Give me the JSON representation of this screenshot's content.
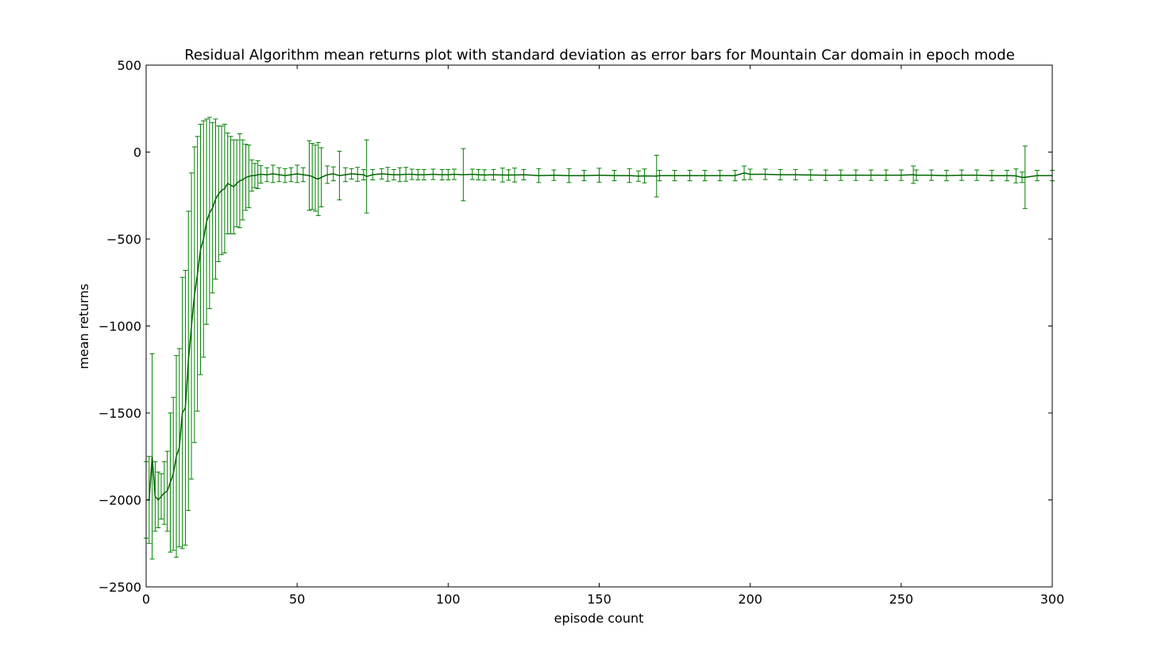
{
  "chart_data": {
    "type": "line",
    "title": "Residual Algorithm mean returns plot with standard deviation as error bars for Mountain Car domain in epoch mode",
    "xlabel": "episode count",
    "ylabel": "mean returns",
    "xlim": [
      0,
      300
    ],
    "ylim": [
      -2500,
      500
    ],
    "xticks": [
      "0",
      "50",
      "100",
      "150",
      "200",
      "250",
      "300"
    ],
    "yticks": [
      "500",
      "0",
      "−500",
      "−1000",
      "−1500",
      "−2000",
      "−2500"
    ],
    "grid": false,
    "legend": "none",
    "line_color": "#006400",
    "errorbar_color": "#008000",
    "series": [
      {
        "x": [
          0,
          1,
          2,
          3,
          4,
          5,
          6,
          7,
          8,
          9,
          10,
          11,
          12,
          13,
          14,
          15,
          16,
          17,
          18,
          19,
          20,
          21,
          22,
          23,
          24,
          25,
          26,
          27,
          28,
          29,
          30,
          31,
          32,
          33,
          34,
          35,
          36,
          37,
          38,
          40,
          42,
          44,
          46,
          48,
          50,
          52,
          54,
          55,
          56,
          57,
          58,
          60,
          62,
          64,
          66,
          68,
          70,
          72,
          73,
          75,
          78,
          80,
          82,
          84,
          86,
          88,
          90,
          92,
          95,
          98,
          100,
          102,
          105,
          108,
          110,
          112,
          115,
          118,
          120,
          122,
          125,
          130,
          135,
          140,
          145,
          150,
          155,
          160,
          163,
          165,
          169,
          170,
          175,
          180,
          185,
          190,
          195,
          198,
          200,
          205,
          210,
          215,
          220,
          225,
          230,
          235,
          240,
          245,
          250,
          254,
          255,
          260,
          265,
          270,
          275,
          280,
          285,
          288,
          290,
          291,
          295,
          300
        ],
        "mean": [
          -2000,
          -2000,
          -1750,
          -1980,
          -2000,
          -1980,
          -1960,
          -1950,
          -1900,
          -1850,
          -1750,
          -1700,
          -1500,
          -1470,
          -1200,
          -1000,
          -820,
          -700,
          -560,
          -500,
          -400,
          -350,
          -320,
          -270,
          -240,
          -220,
          -210,
          -180,
          -190,
          -200,
          -180,
          -165,
          -160,
          -145,
          -140,
          -135,
          -135,
          -130,
          -128,
          -130,
          -125,
          -130,
          -135,
          -130,
          -125,
          -130,
          -135,
          -140,
          -150,
          -155,
          -145,
          -130,
          -125,
          -135,
          -130,
          -125,
          -128,
          -130,
          -140,
          -130,
          -125,
          -128,
          -130,
          -130,
          -128,
          -128,
          -130,
          -130,
          -128,
          -130,
          -130,
          -128,
          -130,
          -128,
          -130,
          -132,
          -130,
          -132,
          -132,
          -132,
          -130,
          -135,
          -133,
          -135,
          -135,
          -133,
          -135,
          -135,
          -138,
          -137,
          -138,
          -135,
          -135,
          -135,
          -135,
          -135,
          -135,
          -120,
          -128,
          -128,
          -130,
          -130,
          -132,
          -133,
          -133,
          -133,
          -133,
          -133,
          -133,
          -130,
          -133,
          -133,
          -135,
          -133,
          -133,
          -135,
          -135,
          -137,
          -145,
          -145,
          -135,
          -135
        ],
        "std": [
          220,
          250,
          590,
          200,
          160,
          130,
          180,
          230,
          400,
          440,
          580,
          570,
          780,
          790,
          860,
          880,
          850,
          790,
          720,
          680,
          590,
          550,
          490,
          460,
          390,
          370,
          370,
          290,
          280,
          270,
          250,
          270,
          230,
          190,
          180,
          90,
          70,
          80,
          50,
          40,
          50,
          40,
          40,
          40,
          50,
          40,
          200,
          190,
          190,
          210,
          170,
          50,
          40,
          140,
          40,
          30,
          40,
          30,
          210,
          30,
          30,
          40,
          30,
          40,
          40,
          30,
          30,
          30,
          30,
          30,
          30,
          30,
          150,
          30,
          30,
          30,
          30,
          40,
          30,
          40,
          30,
          40,
          30,
          40,
          30,
          40,
          30,
          40,
          30,
          40,
          120,
          30,
          30,
          30,
          30,
          30,
          30,
          40,
          30,
          30,
          30,
          30,
          30,
          30,
          30,
          30,
          30,
          30,
          30,
          50,
          30,
          30,
          30,
          30,
          30,
          30,
          30,
          40,
          30,
          180,
          30,
          30
        ]
      }
    ]
  }
}
